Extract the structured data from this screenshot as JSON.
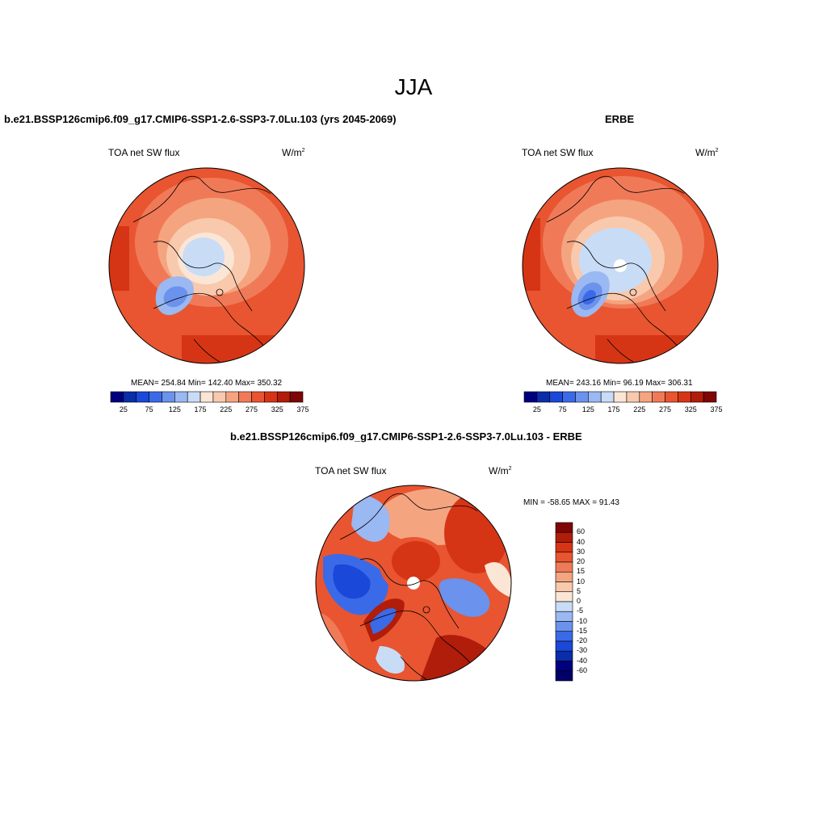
{
  "figure": {
    "title": "JJA"
  },
  "panels": [
    {
      "title": "b.e21.BSSP126cmip6.f09_g17.CMIP6-SSP1-2.6-SSP3-7.0Lu.103 (yrs 2045-2069)",
      "variable": "TOA net SW flux",
      "units_base": "W/m",
      "units_exp": "2",
      "stats": "MEAN= 254.84  Min= 142.40  Max= 350.32"
    },
    {
      "title": "ERBE",
      "variable": "TOA net SW flux",
      "units_base": "W/m",
      "units_exp": "2",
      "stats": "MEAN= 243.16  Min=  96.19  Max= 306.31"
    },
    {
      "title": "b.e21.BSSP126cmip6.f09_g17.CMIP6-SSP1-2.6-SSP3-7.0Lu.103 - ERBE",
      "variable": "TOA net SW flux",
      "units_base": "W/m",
      "units_exp": "2",
      "stats": "MIN = -58.65 MAX =  91.43"
    }
  ],
  "colorbar_abs": {
    "tick_labels": [
      "25",
      "75",
      "125",
      "175",
      "225",
      "275",
      "325",
      "375"
    ],
    "colors": [
      "#00007f",
      "#0a2ea8",
      "#1a48d8",
      "#3b6ae8",
      "#6b92ec",
      "#9ab8f2",
      "#c8dcf6",
      "#fbe6d6",
      "#f9c9ad",
      "#f5a480",
      "#f07a58",
      "#e85530",
      "#d63515",
      "#b01d0a",
      "#7e0606"
    ]
  },
  "colorbar_diff": {
    "levels": [
      "60",
      "40",
      "30",
      "20",
      "15",
      "10",
      "5",
      "0",
      "-5",
      "-10",
      "-15",
      "-20",
      "-30",
      "-40",
      "-60"
    ],
    "colors": [
      "#7e0606",
      "#b01d0a",
      "#d63515",
      "#e85530",
      "#f07a58",
      "#f5a480",
      "#f9c9ad",
      "#fbe6d6",
      "#c8dcf6",
      "#9ab8f2",
      "#6b92ec",
      "#3b6ae8",
      "#1a48d8",
      "#0a2ea8",
      "#00007f",
      "#000066"
    ]
  },
  "chart_data": [
    {
      "type": "heatmap",
      "title": "b.e21.BSSP126cmip6.f09_g17.CMIP6-SSP1-2.6-SSP3-7.0Lu.103 (yrs 2045-2069)",
      "variable": "TOA net SW flux",
      "units": "W/m2",
      "projection": "north polar stereographic",
      "mean": 254.84,
      "min": 142.4,
      "max": 350.32
    },
    {
      "type": "heatmap",
      "title": "ERBE",
      "variable": "TOA net SW flux",
      "units": "W/m2",
      "projection": "north polar stereographic",
      "mean": 243.16,
      "min": 96.19,
      "max": 306.31
    },
    {
      "type": "heatmap",
      "title": "b.e21.BSSP126cmip6.f09_g17.CMIP6-SSP1-2.6-SSP3-7.0Lu.103 - ERBE",
      "variable": "TOA net SW flux",
      "units": "W/m2",
      "projection": "north polar stereographic",
      "min": -58.65,
      "max": 91.43
    }
  ]
}
